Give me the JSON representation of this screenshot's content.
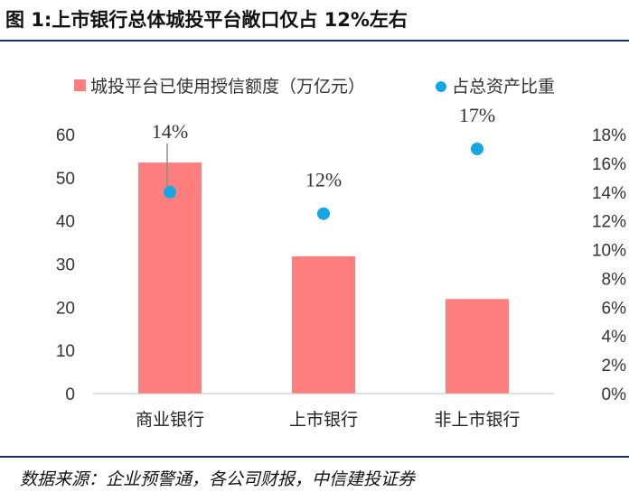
{
  "title": "图 1:上市银行总体城投平台敞口仅占 12%左右",
  "source": "数据来源：企业预警通，各公司财报，中信建投证券",
  "colors": {
    "bar": "#ff7f7f",
    "dot": "#16a6e1",
    "rule": "#1a2f6b"
  },
  "chart_data": {
    "type": "bar",
    "categories": [
      "商业银行",
      "上市银行",
      "非上市银行"
    ],
    "series": [
      {
        "name": "城投平台已使用授信额度（万亿元）",
        "type": "bar",
        "axis": "left",
        "values": [
          53.5,
          31.8,
          21.9
        ]
      },
      {
        "name": "占总资产比重",
        "type": "scatter",
        "axis": "right",
        "values": [
          0.14,
          0.125,
          0.17
        ],
        "labels": [
          "14%",
          "12%",
          "17%"
        ]
      }
    ],
    "y_left": {
      "range": [
        0,
        60
      ],
      "ticks": [
        "0",
        "10",
        "20",
        "30",
        "40",
        "50",
        "60"
      ]
    },
    "y_right": {
      "range": [
        0,
        0.18
      ],
      "ticks": [
        "0%",
        "2%",
        "4%",
        "6%",
        "8%",
        "10%",
        "12%",
        "14%",
        "16%",
        "18%"
      ]
    },
    "legend": {
      "position": "top"
    },
    "grid": false
  }
}
